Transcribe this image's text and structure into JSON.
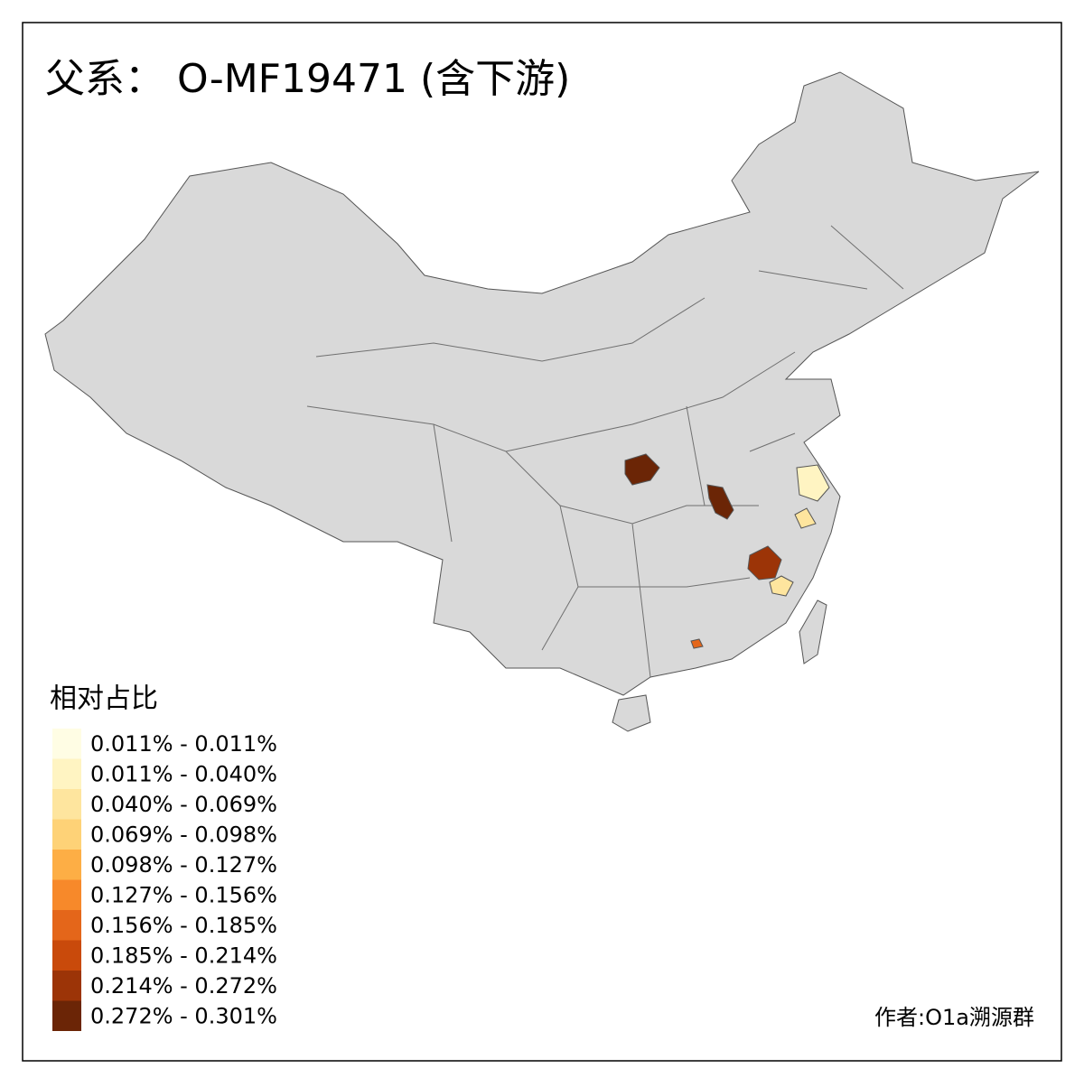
{
  "title": "父系： O-MF19471 (含下游)",
  "legend": {
    "title": "相对占比",
    "items": [
      {
        "label": "0.011% - 0.011%",
        "color": "#fffde4"
      },
      {
        "label": "0.011% - 0.040%",
        "color": "#fff4c2"
      },
      {
        "label": "0.040% - 0.069%",
        "color": "#fee59e"
      },
      {
        "label": "0.069% - 0.098%",
        "color": "#fed277"
      },
      {
        "label": "0.098% - 0.127%",
        "color": "#fdae45"
      },
      {
        "label": "0.127% - 0.156%",
        "color": "#f7892a"
      },
      {
        "label": "0.156% - 0.185%",
        "color": "#e4661a"
      },
      {
        "label": "0.185% - 0.214%",
        "color": "#c94a0b"
      },
      {
        "label": "0.214% - 0.272%",
        "color": "#9c3407"
      },
      {
        "label": "0.272% - 0.301%",
        "color": "#6b2506"
      }
    ]
  },
  "credit": "作者:O1a溯源群"
}
